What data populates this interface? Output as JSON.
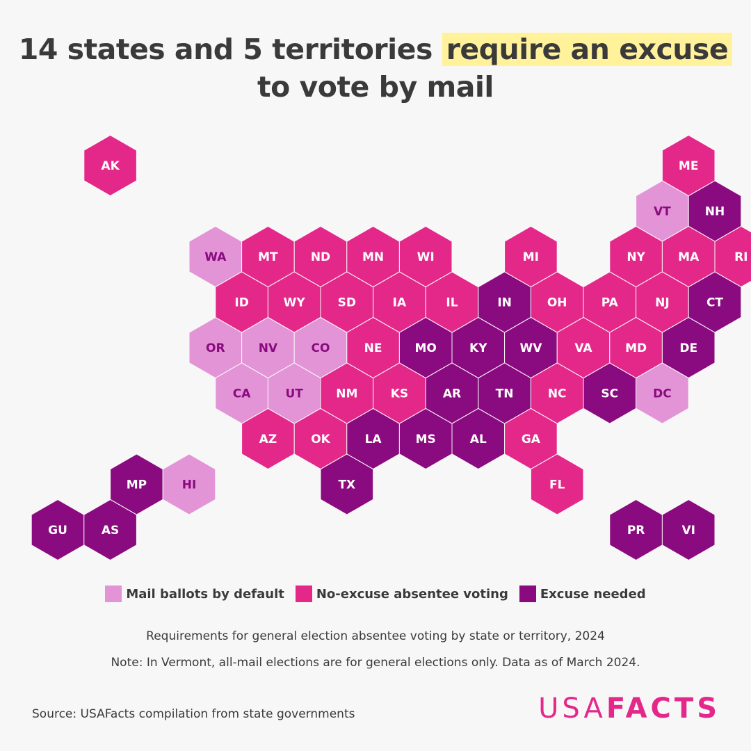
{
  "title": {
    "part1": "14 states and 5 territories ",
    "highlight": "require an excuse",
    "line2": "to vote by mail"
  },
  "colors": {
    "default_mail": "#e394d6",
    "no_excuse": "#e4288a",
    "excuse": "#8a0a7f",
    "label_on_light": "#8a0a7f",
    "label_on_dark": "#ffffff",
    "title_highlight": "#fff29a",
    "brand": "#e4288a"
  },
  "legend": [
    {
      "key": "default_mail",
      "label": "Mail ballots by default"
    },
    {
      "key": "no_excuse",
      "label": "No-excuse absentee voting"
    },
    {
      "key": "excuse",
      "label": "Excuse needed"
    }
  ],
  "subtitle": "Requirements for general election absentee voting by state or territory, 2024",
  "note": "Note: In Vermont, all-mail elections are for general elections only. Data as of March 2024.",
  "source": "Source: USAFacts compilation from state governments",
  "logo": {
    "light": "USA",
    "bold": "FACTS"
  },
  "hexes": [
    {
      "id": "AK",
      "cat": "no_excuse",
      "row": 0,
      "col": 1
    },
    {
      "id": "ME",
      "cat": "no_excuse",
      "row": 0,
      "col": 12
    },
    {
      "id": "VT",
      "cat": "default_mail",
      "row": 1,
      "col": 11
    },
    {
      "id": "NH",
      "cat": "excuse",
      "row": 1,
      "col": 12
    },
    {
      "id": "WA",
      "cat": "default_mail",
      "row": 2,
      "col": 3
    },
    {
      "id": "MT",
      "cat": "no_excuse",
      "row": 2,
      "col": 4
    },
    {
      "id": "ND",
      "cat": "no_excuse",
      "row": 2,
      "col": 5
    },
    {
      "id": "MN",
      "cat": "no_excuse",
      "row": 2,
      "col": 6
    },
    {
      "id": "WI",
      "cat": "no_excuse",
      "row": 2,
      "col": 7
    },
    {
      "id": "MI",
      "cat": "no_excuse",
      "row": 2,
      "col": 9
    },
    {
      "id": "NY",
      "cat": "no_excuse",
      "row": 2,
      "col": 11
    },
    {
      "id": "MA",
      "cat": "no_excuse",
      "row": 2,
      "col": 12
    },
    {
      "id": "RI",
      "cat": "no_excuse",
      "row": 2,
      "col": 13
    },
    {
      "id": "ID",
      "cat": "no_excuse",
      "row": 3,
      "col": 3
    },
    {
      "id": "WY",
      "cat": "no_excuse",
      "row": 3,
      "col": 4
    },
    {
      "id": "SD",
      "cat": "no_excuse",
      "row": 3,
      "col": 5
    },
    {
      "id": "IA",
      "cat": "no_excuse",
      "row": 3,
      "col": 6
    },
    {
      "id": "IL",
      "cat": "no_excuse",
      "row": 3,
      "col": 7
    },
    {
      "id": "IN",
      "cat": "excuse",
      "row": 3,
      "col": 8
    },
    {
      "id": "OH",
      "cat": "no_excuse",
      "row": 3,
      "col": 9
    },
    {
      "id": "PA",
      "cat": "no_excuse",
      "row": 3,
      "col": 10
    },
    {
      "id": "NJ",
      "cat": "no_excuse",
      "row": 3,
      "col": 11
    },
    {
      "id": "CT",
      "cat": "excuse",
      "row": 3,
      "col": 12
    },
    {
      "id": "OR",
      "cat": "default_mail",
      "row": 4,
      "col": 3
    },
    {
      "id": "NV",
      "cat": "default_mail",
      "row": 4,
      "col": 4
    },
    {
      "id": "CO",
      "cat": "default_mail",
      "row": 4,
      "col": 5
    },
    {
      "id": "NE",
      "cat": "no_excuse",
      "row": 4,
      "col": 6
    },
    {
      "id": "MO",
      "cat": "excuse",
      "row": 4,
      "col": 7
    },
    {
      "id": "KY",
      "cat": "excuse",
      "row": 4,
      "col": 8
    },
    {
      "id": "WV",
      "cat": "excuse",
      "row": 4,
      "col": 9
    },
    {
      "id": "VA",
      "cat": "no_excuse",
      "row": 4,
      "col": 10
    },
    {
      "id": "MD",
      "cat": "no_excuse",
      "row": 4,
      "col": 11
    },
    {
      "id": "DE",
      "cat": "excuse",
      "row": 4,
      "col": 12
    },
    {
      "id": "CA",
      "cat": "default_mail",
      "row": 5,
      "col": 3
    },
    {
      "id": "UT",
      "cat": "default_mail",
      "row": 5,
      "col": 4
    },
    {
      "id": "NM",
      "cat": "no_excuse",
      "row": 5,
      "col": 5
    },
    {
      "id": "KS",
      "cat": "no_excuse",
      "row": 5,
      "col": 6
    },
    {
      "id": "AR",
      "cat": "excuse",
      "row": 5,
      "col": 7
    },
    {
      "id": "TN",
      "cat": "excuse",
      "row": 5,
      "col": 8
    },
    {
      "id": "NC",
      "cat": "no_excuse",
      "row": 5,
      "col": 9
    },
    {
      "id": "SC",
      "cat": "excuse",
      "row": 5,
      "col": 10
    },
    {
      "id": "DC",
      "cat": "default_mail",
      "row": 5,
      "col": 11
    },
    {
      "id": "AZ",
      "cat": "no_excuse",
      "row": 6,
      "col": 4
    },
    {
      "id": "OK",
      "cat": "no_excuse",
      "row": 6,
      "col": 5
    },
    {
      "id": "LA",
      "cat": "excuse",
      "row": 6,
      "col": 6
    },
    {
      "id": "MS",
      "cat": "excuse",
      "row": 6,
      "col": 7
    },
    {
      "id": "AL",
      "cat": "excuse",
      "row": 6,
      "col": 8
    },
    {
      "id": "GA",
      "cat": "no_excuse",
      "row": 6,
      "col": 9
    },
    {
      "id": "MP",
      "cat": "excuse",
      "row": 7,
      "col": 1
    },
    {
      "id": "HI",
      "cat": "default_mail",
      "row": 7,
      "col": 2
    },
    {
      "id": "TX",
      "cat": "excuse",
      "row": 7,
      "col": 5
    },
    {
      "id": "FL",
      "cat": "no_excuse",
      "row": 7,
      "col": 9
    },
    {
      "id": "GU",
      "cat": "excuse",
      "row": 8,
      "col": 0
    },
    {
      "id": "AS",
      "cat": "excuse",
      "row": 8,
      "col": 1
    },
    {
      "id": "PR",
      "cat": "excuse",
      "row": 8,
      "col": 11
    },
    {
      "id": "VI",
      "cat": "excuse",
      "row": 8,
      "col": 12
    }
  ]
}
